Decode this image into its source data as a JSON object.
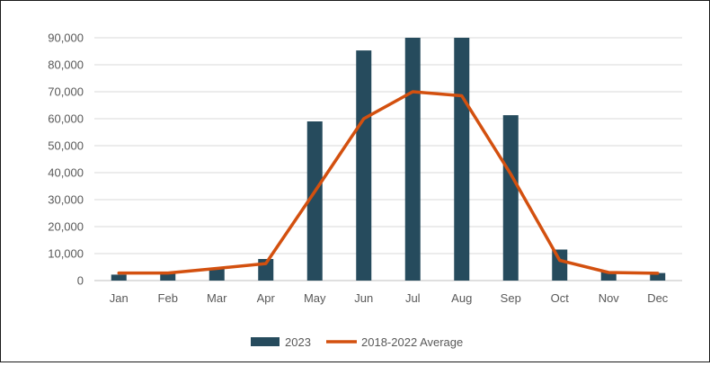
{
  "chart_data": {
    "type": "bar",
    "title": "",
    "xlabel": "",
    "ylabel": "",
    "categories": [
      "Jan",
      "Feb",
      "Mar",
      "Apr",
      "May",
      "Jun",
      "Jul",
      "Aug",
      "Sep",
      "Oct",
      "Nov",
      "Dec"
    ],
    "ylim": [
      0,
      90000
    ],
    "yticks": [
      "0",
      "10,000",
      "20,000",
      "30,000",
      "40,000",
      "50,000",
      "60,000",
      "70,000",
      "80,000",
      "90,000"
    ],
    "grid": true,
    "legend_position": "bottom",
    "series": [
      {
        "name": "2023",
        "type": "bar",
        "color": "#264b5d",
        "values": [
          2200,
          2600,
          4500,
          8000,
          59000,
          85300,
          90000,
          90000,
          61300,
          11500,
          3200,
          2800
        ]
      },
      {
        "name": "2018-2022 Average",
        "type": "line",
        "color": "#d3500f",
        "values": [
          2800,
          2800,
          4500,
          6300,
          33000,
          60000,
          70000,
          68500,
          39500,
          7500,
          3000,
          2700
        ]
      }
    ]
  }
}
